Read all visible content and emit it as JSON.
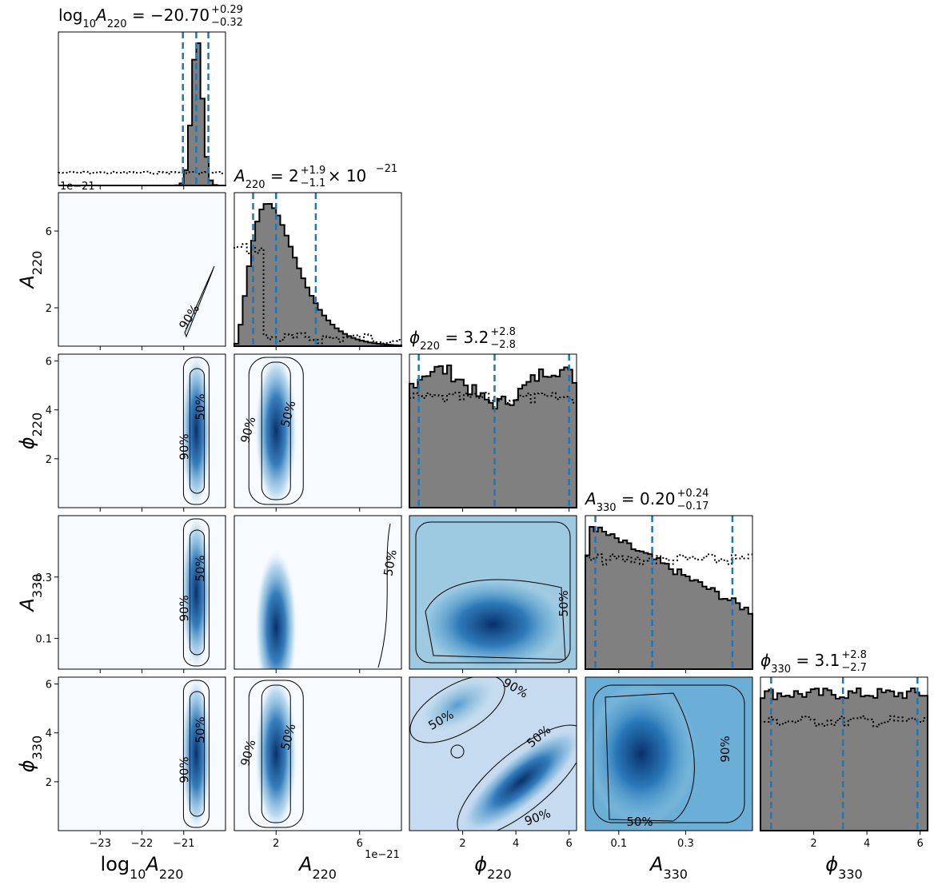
{
  "figure": {
    "type": "corner",
    "params": [
      {
        "key": "logA220",
        "label_main": "log",
        "label_sub1": "10",
        "label_var": "A",
        "label_sub2": "220",
        "title_value": "-20.70",
        "title_plus": "+0.29",
        "title_minus": "−0.32",
        "ticks": [
          -23,
          -22,
          -21
        ],
        "range": [
          -24.0,
          -20.0
        ],
        "offset": "",
        "hist_type": "peak",
        "q": [
          -21.02,
          -20.7,
          -20.41
        ]
      },
      {
        "key": "A220",
        "label_main": "",
        "label_sub1": "",
        "label_var": "A",
        "label_sub2": "220",
        "title_value": "2",
        "title_plus": "+1.9",
        "title_minus": "−1.1",
        "title_suffix": "× 10",
        "title_exp": "−21",
        "ticks": [
          2,
          6
        ],
        "range": [
          0,
          8.0
        ],
        "offset": "1e−21",
        "hist_type": "skew",
        "q": [
          0.9,
          2.0,
          3.9
        ]
      },
      {
        "key": "phi220",
        "label_main": "",
        "label_sub1": "",
        "label_var": "ϕ",
        "label_sub2": "220",
        "title_value": "3.2",
        "title_plus": "+2.8",
        "title_minus": "−2.8",
        "ticks": [
          2,
          4,
          6
        ],
        "range": [
          0,
          6.28
        ],
        "offset": "",
        "hist_type": "flat",
        "q": [
          0.35,
          3.2,
          6.0
        ]
      },
      {
        "key": "A330",
        "label_main": "",
        "label_sub1": "",
        "label_var": "A",
        "label_sub2": "330",
        "title_value": "0.20",
        "title_plus": "+0.24",
        "title_minus": "−0.17",
        "ticks": [
          0.1,
          0.3
        ],
        "range": [
          0.0,
          0.5
        ],
        "offset": "",
        "hist_type": "decline",
        "q": [
          0.03,
          0.2,
          0.44
        ]
      },
      {
        "key": "phi330",
        "label_main": "",
        "label_sub1": "",
        "label_var": "ϕ",
        "label_sub2": "330",
        "title_value": "3.1",
        "title_plus": "+2.8",
        "title_minus": "−2.7",
        "ticks": [
          2,
          4,
          6
        ],
        "range": [
          0,
          6.28
        ],
        "offset": "",
        "hist_type": "flat2",
        "q": [
          0.4,
          3.1,
          5.9
        ]
      }
    ],
    "contour_labels": {
      "inner": "50%",
      "outer": "90%"
    }
  },
  "chart_data": {
    "type": "corner",
    "parameters": [
      "log10A220",
      "A220",
      "phi220",
      "A330",
      "phi330"
    ],
    "credible_intervals": [
      {
        "param": "log10A220",
        "median": -20.7,
        "plus": 0.29,
        "minus": 0.32
      },
      {
        "param": "A220",
        "median": 2e-21,
        "plus": 1.9e-21,
        "minus": 1.1e-21
      },
      {
        "param": "phi220",
        "median": 3.2,
        "plus": 2.8,
        "minus": 2.8
      },
      {
        "param": "A330",
        "median": 0.2,
        "plus": 0.24,
        "minus": 0.17
      },
      {
        "param": "phi330",
        "median": 3.1,
        "plus": 2.8,
        "minus": 2.7
      }
    ],
    "contour_levels": [
      "50%",
      "90%"
    ],
    "colors": {
      "density": "#08519c",
      "hist": "#808080",
      "quantile": "#1f77b4"
    }
  }
}
